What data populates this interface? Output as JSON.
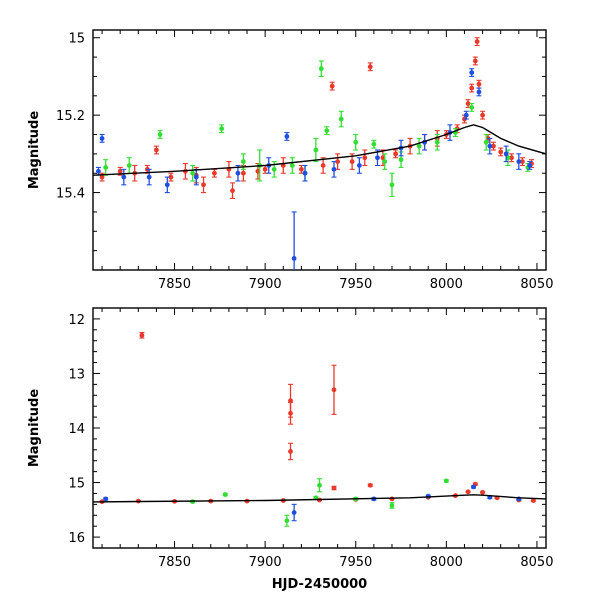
{
  "colors": {
    "red": "#e8392b",
    "green": "#33dd33",
    "blue": "#1f4fe0",
    "model": "#000000"
  },
  "chart_data": [
    {
      "type": "scatter",
      "title": "",
      "xlabel": "",
      "ylabel": "Magnitude",
      "xlim": [
        7805,
        8055
      ],
      "ylim": [
        15.6,
        14.98
      ],
      "y_inverted": true,
      "xticks": [
        "7850",
        "7900",
        "7950",
        "8000",
        "8050"
      ],
      "yticks": [
        "15",
        "15.2",
        "15.4"
      ],
      "model_curve": {
        "x": [
          7805,
          7850,
          7900,
          7950,
          7980,
          8000,
          8010,
          8015,
          8020,
          8030,
          8040,
          8055
        ],
        "y": [
          15.355,
          15.345,
          15.33,
          15.305,
          15.28,
          15.25,
          15.232,
          15.225,
          15.232,
          15.26,
          15.28,
          15.3
        ]
      },
      "series": [
        {
          "color": "red",
          "points": [
            [
              7810,
              15.36,
              0.01
            ],
            [
              7820,
              15.345,
              0.01
            ],
            [
              7828,
              15.35,
              0.02
            ],
            [
              7835,
              15.34,
              0.01
            ],
            [
              7840,
              15.29,
              0.01
            ],
            [
              7848,
              15.36,
              0.01
            ],
            [
              7856,
              15.345,
              0.02
            ],
            [
              7862,
              15.355,
              0.02
            ],
            [
              7866,
              15.38,
              0.02
            ],
            [
              7872,
              15.35,
              0.01
            ],
            [
              7880,
              15.34,
              0.02
            ],
            [
              7882,
              15.395,
              0.02
            ],
            [
              7888,
              15.35,
              0.02
            ],
            [
              7896,
              15.345,
              0.02
            ],
            [
              7900,
              15.34,
              0.01
            ],
            [
              7910,
              15.33,
              0.02
            ],
            [
              7920,
              15.34,
              0.01
            ],
            [
              7932,
              15.33,
              0.02
            ],
            [
              7937,
              15.125,
              0.01
            ],
            [
              7940,
              15.32,
              0.02
            ],
            [
              7948,
              15.32,
              0.02
            ],
            [
              7955,
              15.31,
              0.02
            ],
            [
              7958,
              15.075,
              0.01
            ],
            [
              7965,
              15.31,
              0.02
            ],
            [
              7972,
              15.3,
              0.01
            ],
            [
              7980,
              15.28,
              0.02
            ],
            [
              7988,
              15.27,
              0.02
            ],
            [
              7995,
              15.26,
              0.02
            ],
            [
              8000,
              15.25,
              0.01
            ],
            [
              8006,
              15.235,
              0.01
            ],
            [
              8010,
              15.21,
              0.01
            ],
            [
              8012,
              15.17,
              0.01
            ],
            [
              8014,
              15.13,
              0.01
            ],
            [
              8016,
              15.06,
              0.01
            ],
            [
              8017,
              15.01,
              0.01
            ],
            [
              8018,
              15.12,
              0.01
            ],
            [
              8020,
              15.2,
              0.01
            ],
            [
              8023,
              15.26,
              0.01
            ],
            [
              8026,
              15.28,
              0.01
            ],
            [
              8030,
              15.295,
              0.01
            ],
            [
              8036,
              15.31,
              0.01
            ],
            [
              8042,
              15.32,
              0.01
            ],
            [
              8047,
              15.325,
              0.01
            ]
          ]
        },
        {
          "color": "green",
          "points": [
            [
              7812,
              15.335,
              0.02
            ],
            [
              7825,
              15.33,
              0.02
            ],
            [
              7842,
              15.25,
              0.01
            ],
            [
              7860,
              15.35,
              0.02
            ],
            [
              7876,
              15.235,
              0.01
            ],
            [
              7888,
              15.32,
              0.02
            ],
            [
              7897,
              15.33,
              0.04
            ],
            [
              7905,
              15.34,
              0.02
            ],
            [
              7915,
              15.33,
              0.02
            ],
            [
              7922,
              15.35,
              0.02
            ],
            [
              7928,
              15.29,
              0.03
            ],
            [
              7931,
              15.08,
              0.02
            ],
            [
              7934,
              15.24,
              0.01
            ],
            [
              7942,
              15.21,
              0.02
            ],
            [
              7950,
              15.27,
              0.02
            ],
            [
              7960,
              15.275,
              0.01
            ],
            [
              7966,
              15.32,
              0.02
            ],
            [
              7970,
              15.38,
              0.03
            ],
            [
              7975,
              15.315,
              0.02
            ],
            [
              7985,
              15.28,
              0.02
            ],
            [
              7995,
              15.27,
              0.02
            ],
            [
              8005,
              15.245,
              0.01
            ],
            [
              8014,
              15.18,
              0.01
            ],
            [
              8022,
              15.27,
              0.02
            ],
            [
              8034,
              15.31,
              0.02
            ],
            [
              8045,
              15.335,
              0.01
            ]
          ]
        },
        {
          "color": "blue",
          "points": [
            [
              7808,
              15.345,
              0.01
            ],
            [
              7810,
              15.26,
              0.01
            ],
            [
              7822,
              15.36,
              0.02
            ],
            [
              7836,
              15.36,
              0.02
            ],
            [
              7846,
              15.38,
              0.02
            ],
            [
              7862,
              15.36,
              0.02
            ],
            [
              7885,
              15.35,
              0.02
            ],
            [
              7902,
              15.33,
              0.02
            ],
            [
              7912,
              15.255,
              0.01
            ],
            [
              7916,
              15.57,
              0.12
            ],
            [
              7922,
              15.35,
              0.02
            ],
            [
              7938,
              15.34,
              0.02
            ],
            [
              7952,
              15.33,
              0.02
            ],
            [
              7962,
              15.31,
              0.02
            ],
            [
              7975,
              15.285,
              0.02
            ],
            [
              7988,
              15.27,
              0.02
            ],
            [
              8002,
              15.245,
              0.02
            ],
            [
              8011,
              15.2,
              0.01
            ],
            [
              8014,
              15.09,
              0.01
            ],
            [
              8018,
              15.14,
              0.01
            ],
            [
              8024,
              15.28,
              0.02
            ],
            [
              8033,
              15.3,
              0.02
            ],
            [
              8040,
              15.32,
              0.02
            ],
            [
              8046,
              15.33,
              0.01
            ]
          ]
        }
      ]
    },
    {
      "type": "scatter",
      "title": "",
      "xlabel": "HJD-2450000",
      "ylabel": "Magnitude",
      "xlim": [
        7805,
        8055
      ],
      "ylim": [
        16.2,
        11.8
      ],
      "y_inverted": true,
      "xticks": [
        "7850",
        "7900",
        "7950",
        "8000",
        "8050"
      ],
      "yticks": [
        "12",
        "13",
        "14",
        "15",
        "16"
      ],
      "model_curve": {
        "x": [
          7805,
          7900,
          7980,
          8010,
          8015,
          8020,
          8040,
          8055
        ],
        "y": [
          15.355,
          15.33,
          15.28,
          15.232,
          15.225,
          15.232,
          15.28,
          15.3
        ]
      },
      "series": [
        {
          "color": "red",
          "points": [
            [
              7832,
              12.3,
              0.05
            ],
            [
              7914,
              13.5,
              0.3
            ],
            [
              7914,
              13.73,
              0.2
            ],
            [
              7914,
              14.43,
              0.15
            ],
            [
              7938,
              13.3,
              0.45
            ],
            [
              7938,
              15.1,
              0.03
            ],
            [
              7958,
              15.05,
              0.02
            ],
            [
              7810,
              15.35,
              0.01
            ],
            [
              7830,
              15.34,
              0.01
            ],
            [
              7850,
              15.345,
              0.01
            ],
            [
              7870,
              15.34,
              0.01
            ],
            [
              7890,
              15.34,
              0.01
            ],
            [
              7910,
              15.33,
              0.01
            ],
            [
              7930,
              15.32,
              0.01
            ],
            [
              7950,
              15.31,
              0.01
            ],
            [
              7970,
              15.3,
              0.01
            ],
            [
              7990,
              15.27,
              0.01
            ],
            [
              8005,
              15.24,
              0.01
            ],
            [
              8012,
              15.17,
              0.01
            ],
            [
              8016,
              15.03,
              0.02
            ],
            [
              8020,
              15.18,
              0.01
            ],
            [
              8028,
              15.28,
              0.01
            ],
            [
              8040,
              15.32,
              0.01
            ],
            [
              8048,
              15.33,
              0.01
            ]
          ]
        },
        {
          "color": "green",
          "points": [
            [
              7878,
              15.22,
              0.02
            ],
            [
              7912,
              15.7,
              0.1
            ],
            [
              7930,
              15.05,
              0.12
            ],
            [
              7928,
              15.28,
              0.02
            ],
            [
              7970,
              15.42,
              0.05
            ],
            [
              8000,
              14.97,
              0.02
            ],
            [
              7860,
              15.35,
              0.02
            ],
            [
              7950,
              15.3,
              0.02
            ]
          ]
        },
        {
          "color": "blue",
          "points": [
            [
              7812,
              15.3,
              0.02
            ],
            [
              7916,
              15.55,
              0.15
            ],
            [
              7960,
              15.3,
              0.02
            ],
            [
              7990,
              15.25,
              0.02
            ],
            [
              8015,
              15.08,
              0.02
            ],
            [
              8024,
              15.27,
              0.02
            ],
            [
              8040,
              15.3,
              0.02
            ]
          ]
        }
      ]
    }
  ]
}
